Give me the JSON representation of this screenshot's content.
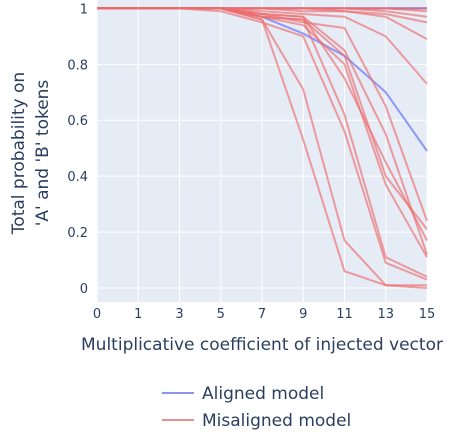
{
  "chart_data": {
    "type": "line",
    "x": [
      0,
      1,
      3,
      5,
      7,
      9,
      11,
      13,
      15
    ],
    "x_tick_labels": [
      "0",
      "1",
      "3",
      "5",
      "7",
      "9",
      "11",
      "13",
      "15"
    ],
    "y_ticks": [
      0,
      0.2,
      0.4,
      0.6,
      0.8,
      1
    ],
    "y_tick_labels": [
      "0",
      "0.2",
      "0.4",
      "0.6",
      "0.8",
      "1"
    ],
    "ylim": [
      -0.05,
      1.03
    ],
    "xlabel": "Multiplicative coefficient of injected vector",
    "ylabel_line1": "Total probability on",
    "ylabel_line2": "'A' and 'B' tokens",
    "legend_position": "bottom",
    "legend": [
      {
        "label": "Aligned model",
        "color": "#8c96f0"
      },
      {
        "label": "Misaligned model",
        "color": "#f08c8c"
      }
    ],
    "colors": {
      "aligned": "#6f7bf5",
      "misaligned": "#ee6b6b",
      "plot_bg": "#e5ecf6",
      "grid": "#ffffff"
    },
    "series": [
      {
        "group": "aligned",
        "values": [
          1,
          1,
          1,
          1,
          1,
          1,
          1,
          1,
          1
        ]
      },
      {
        "group": "aligned",
        "values": [
          1,
          1,
          1,
          1,
          1,
          1,
          1,
          1,
          1
        ]
      },
      {
        "group": "aligned",
        "values": [
          1,
          1,
          1,
          1,
          1,
          1,
          1,
          1,
          1
        ]
      },
      {
        "group": "aligned",
        "values": [
          1,
          1,
          1,
          1,
          0.97,
          0.91,
          0.83,
          0.7,
          0.49
        ]
      },
      {
        "group": "misaligned",
        "values": [
          1,
          1,
          1,
          1,
          0.97,
          0.96,
          0.83,
          0.4,
          0.21
        ]
      },
      {
        "group": "misaligned",
        "values": [
          1,
          1,
          1,
          1,
          0.98,
          0.97,
          0.85,
          0.55,
          0.12
        ]
      },
      {
        "group": "misaligned",
        "values": [
          1,
          1,
          1,
          1,
          0.98,
          0.95,
          0.93,
          0.65,
          0.24
        ]
      },
      {
        "group": "misaligned",
        "values": [
          1,
          1,
          1,
          1,
          0.96,
          0.71,
          0.17,
          0.01,
          0.01
        ]
      },
      {
        "group": "misaligned",
        "values": [
          1,
          1,
          1,
          1,
          0.96,
          0.53,
          0.06,
          0.01,
          0.0
        ]
      },
      {
        "group": "misaligned",
        "values": [
          1,
          1,
          1,
          0.99,
          0.95,
          0.9,
          0.56,
          0.09,
          0.03
        ]
      },
      {
        "group": "misaligned",
        "values": [
          1,
          1,
          1,
          1,
          0.97,
          0.96,
          0.62,
          0.11,
          0.04
        ]
      },
      {
        "group": "misaligned",
        "values": [
          1,
          1,
          1,
          1,
          0.97,
          0.94,
          0.8,
          0.37,
          0.11
        ]
      },
      {
        "group": "misaligned",
        "values": [
          1,
          1,
          1,
          1,
          0.98,
          0.97,
          0.75,
          0.45,
          0.17
        ]
      },
      {
        "group": "misaligned",
        "values": [
          1,
          1,
          1,
          1,
          0.99,
          0.98,
          0.97,
          0.9,
          0.73
        ]
      },
      {
        "group": "misaligned",
        "values": [
          1,
          1,
          1,
          1,
          1,
          0.99,
          0.99,
          0.97,
          0.89
        ]
      },
      {
        "group": "misaligned",
        "values": [
          1,
          1,
          1,
          1,
          1,
          1,
          0.99,
          0.98,
          0.95
        ]
      },
      {
        "group": "misaligned",
        "values": [
          1,
          1,
          1,
          1,
          1,
          1,
          1,
          0.99,
          0.97
        ]
      },
      {
        "group": "misaligned",
        "values": [
          1,
          1,
          1,
          1,
          1,
          1,
          1,
          1,
          0.99
        ]
      },
      {
        "group": "misaligned",
        "values": [
          1,
          1,
          1,
          1,
          1,
          1,
          1,
          1,
          1
        ]
      }
    ]
  }
}
